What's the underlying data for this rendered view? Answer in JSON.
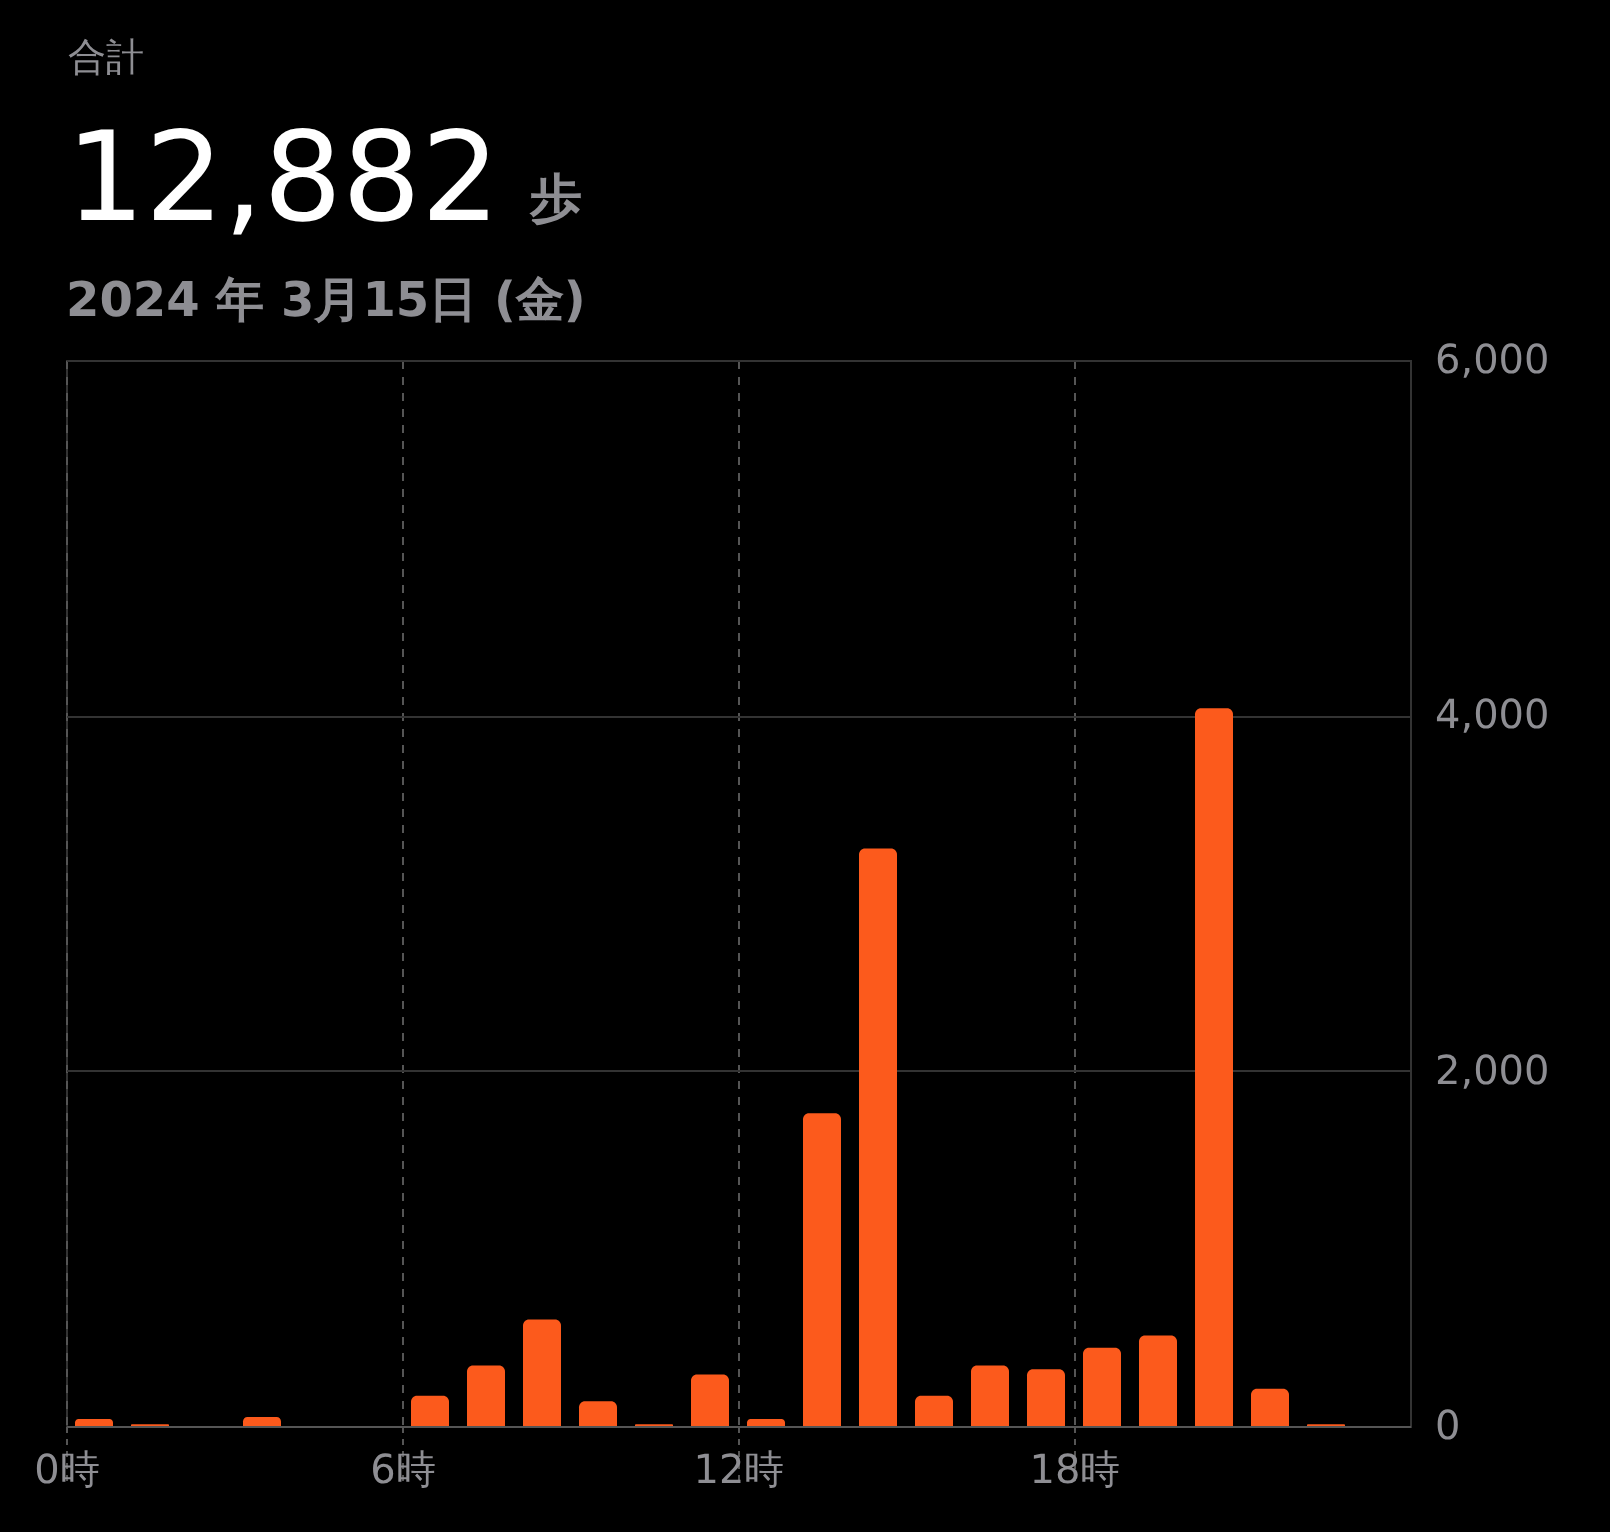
{
  "chart_data": {
    "type": "histogram",
    "annotations": [
      "合計",
      "歩"
    ],
    "title": "12,882",
    "subtitle": "2024 年 3月15日 (金)",
    "bins": [
      0,
      1,
      2,
      3,
      4,
      5,
      6,
      7,
      8,
      9,
      10,
      11,
      12,
      13,
      14,
      15,
      16,
      17,
      18,
      19,
      20,
      21,
      22,
      23,
      24
    ],
    "values": [
      40,
      10,
      0,
      50,
      0,
      0,
      170,
      340,
      600,
      140,
      10,
      290,
      40,
      1760,
      3250,
      170,
      340,
      320,
      440,
      510,
      4040,
      210,
      10,
      0
    ],
    "color": "#fc5a1c",
    "xlim": [
      0,
      24
    ],
    "xticks": [
      {
        "value": 0,
        "label": "0時"
      },
      {
        "value": 6,
        "label": "6時"
      },
      {
        "value": 12,
        "label": "12時"
      },
      {
        "value": 18,
        "label": "18時"
      }
    ],
    "ylim": [
      0,
      6000
    ],
    "yticks": [
      0,
      {
        "value": 2000,
        "label": "2,000"
      },
      {
        "value": 4000,
        "label": "4,000"
      },
      {
        "value": 6000,
        "label": "6,000"
      }
    ],
    "grid": true
  }
}
